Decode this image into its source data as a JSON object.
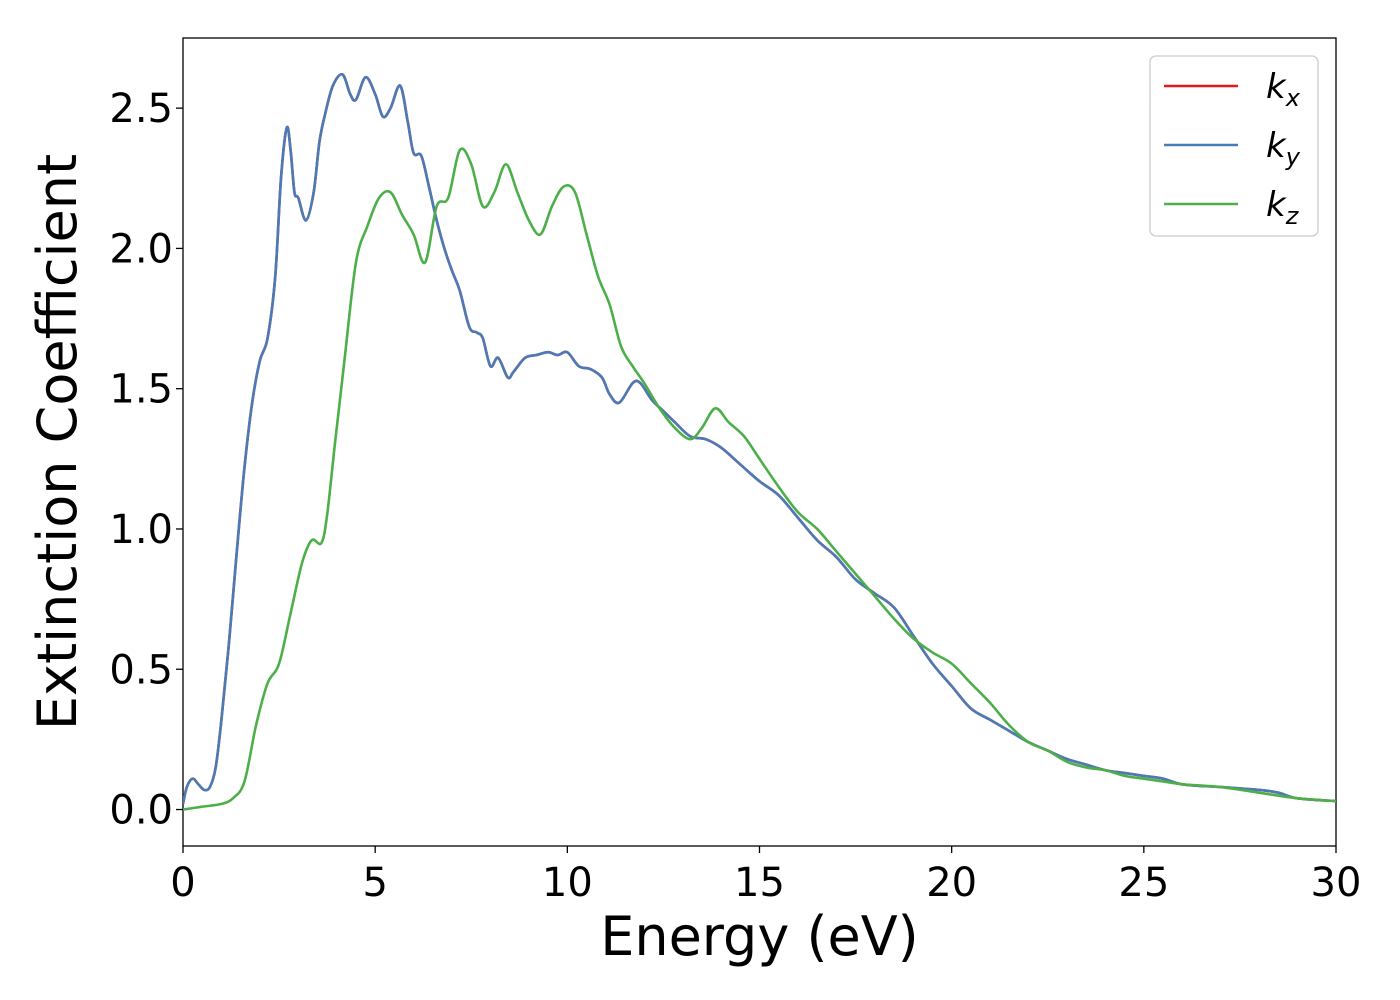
{
  "chart_data": {
    "type": "line",
    "xlabel": "Energy (eV)",
    "ylabel": "Extinction Coefficient",
    "xlim": [
      0,
      30
    ],
    "ylim": [
      -0.13,
      2.75
    ],
    "xticks": [
      0,
      5,
      10,
      15,
      20,
      25,
      30
    ],
    "xtick_labels": [
      "0",
      "5",
      "10",
      "15",
      "20",
      "25",
      "30"
    ],
    "yticks": [
      0.0,
      0.5,
      1.0,
      1.5,
      2.0,
      2.5
    ],
    "ytick_labels": [
      "0.0",
      "0.5",
      "1.0",
      "1.5",
      "2.0",
      "2.5"
    ],
    "grid": false,
    "legend_position": "top-right",
    "series": [
      {
        "name": "k_x",
        "label_main": "k",
        "label_sub": "x",
        "color": "#e41a1c",
        "x": [
          0,
          0.1,
          0.25,
          0.4,
          0.55,
          0.7,
          0.85,
          1.0,
          1.2,
          1.4,
          1.6,
          1.8,
          2.0,
          2.2,
          2.4,
          2.55,
          2.7,
          2.8,
          2.9,
          3.0,
          3.2,
          3.4,
          3.55,
          3.7,
          3.9,
          4.15,
          4.35,
          4.5,
          4.75,
          5.0,
          5.2,
          5.4,
          5.65,
          5.85,
          6.0,
          6.2,
          6.4,
          6.6,
          6.8,
          7.0,
          7.2,
          7.45,
          7.65,
          7.8,
          8.0,
          8.2,
          8.45,
          8.6,
          8.9,
          9.2,
          9.5,
          9.75,
          10.0,
          10.3,
          10.6,
          10.9,
          11.1,
          11.35,
          11.7,
          11.9,
          12.2,
          12.5,
          12.8,
          13.2,
          13.6,
          14.0,
          14.5,
          15.0,
          15.5,
          16.0,
          16.5,
          17.0,
          17.5,
          18.0,
          18.5,
          19.0,
          19.5,
          20.0,
          20.5,
          21.0,
          21.5,
          22.0,
          22.5,
          23.0,
          23.5,
          24.0,
          24.5,
          25.0,
          25.5,
          26.0,
          27.0,
          28.0,
          28.5,
          29.0,
          30.0
        ],
        "values": [
          0.02,
          0.08,
          0.11,
          0.09,
          0.07,
          0.08,
          0.15,
          0.32,
          0.6,
          0.92,
          1.22,
          1.45,
          1.6,
          1.68,
          1.9,
          2.25,
          2.43,
          2.35,
          2.2,
          2.18,
          2.1,
          2.2,
          2.38,
          2.48,
          2.58,
          2.62,
          2.55,
          2.53,
          2.61,
          2.55,
          2.47,
          2.5,
          2.58,
          2.45,
          2.34,
          2.33,
          2.22,
          2.1,
          2.0,
          1.92,
          1.85,
          1.72,
          1.7,
          1.68,
          1.58,
          1.61,
          1.54,
          1.56,
          1.61,
          1.62,
          1.63,
          1.62,
          1.63,
          1.58,
          1.57,
          1.54,
          1.48,
          1.45,
          1.52,
          1.52,
          1.46,
          1.42,
          1.38,
          1.33,
          1.32,
          1.29,
          1.23,
          1.17,
          1.12,
          1.04,
          0.96,
          0.9,
          0.82,
          0.77,
          0.72,
          0.62,
          0.52,
          0.44,
          0.36,
          0.32,
          0.28,
          0.24,
          0.21,
          0.18,
          0.16,
          0.14,
          0.13,
          0.12,
          0.11,
          0.09,
          0.08,
          0.07,
          0.06,
          0.04,
          0.03
        ]
      },
      {
        "name": "k_y",
        "label_main": "k",
        "label_sub": "y",
        "color": "#4a7bb7",
        "x": [
          0,
          0.1,
          0.25,
          0.4,
          0.55,
          0.7,
          0.85,
          1.0,
          1.2,
          1.4,
          1.6,
          1.8,
          2.0,
          2.2,
          2.4,
          2.55,
          2.7,
          2.8,
          2.9,
          3.0,
          3.2,
          3.4,
          3.55,
          3.7,
          3.9,
          4.15,
          4.35,
          4.5,
          4.75,
          5.0,
          5.2,
          5.4,
          5.65,
          5.85,
          6.0,
          6.2,
          6.4,
          6.6,
          6.8,
          7.0,
          7.2,
          7.45,
          7.65,
          7.8,
          8.0,
          8.2,
          8.45,
          8.6,
          8.9,
          9.2,
          9.5,
          9.75,
          10.0,
          10.3,
          10.6,
          10.9,
          11.1,
          11.35,
          11.7,
          11.9,
          12.2,
          12.5,
          12.8,
          13.2,
          13.6,
          14.0,
          14.5,
          15.0,
          15.5,
          16.0,
          16.5,
          17.0,
          17.5,
          18.0,
          18.5,
          19.0,
          19.5,
          20.0,
          20.5,
          21.0,
          21.5,
          22.0,
          22.5,
          23.0,
          23.5,
          24.0,
          24.5,
          25.0,
          25.5,
          26.0,
          27.0,
          28.0,
          28.5,
          29.0,
          30.0
        ],
        "values": [
          0.02,
          0.08,
          0.11,
          0.09,
          0.07,
          0.08,
          0.15,
          0.32,
          0.6,
          0.92,
          1.22,
          1.45,
          1.6,
          1.68,
          1.9,
          2.25,
          2.43,
          2.35,
          2.2,
          2.18,
          2.1,
          2.2,
          2.38,
          2.48,
          2.58,
          2.62,
          2.55,
          2.53,
          2.61,
          2.55,
          2.47,
          2.5,
          2.58,
          2.45,
          2.34,
          2.33,
          2.22,
          2.1,
          2.0,
          1.92,
          1.85,
          1.72,
          1.7,
          1.68,
          1.58,
          1.61,
          1.54,
          1.56,
          1.61,
          1.62,
          1.63,
          1.62,
          1.63,
          1.58,
          1.57,
          1.54,
          1.48,
          1.45,
          1.52,
          1.52,
          1.46,
          1.42,
          1.38,
          1.33,
          1.32,
          1.29,
          1.23,
          1.17,
          1.12,
          1.04,
          0.96,
          0.9,
          0.82,
          0.77,
          0.72,
          0.62,
          0.52,
          0.44,
          0.36,
          0.32,
          0.28,
          0.24,
          0.21,
          0.18,
          0.16,
          0.14,
          0.13,
          0.12,
          0.11,
          0.09,
          0.08,
          0.07,
          0.06,
          0.04,
          0.03
        ]
      },
      {
        "name": "k_z",
        "label_main": "k",
        "label_sub": "z",
        "color": "#4daf4a",
        "x": [
          0,
          0.5,
          1.0,
          1.3,
          1.6,
          1.9,
          2.2,
          2.5,
          2.8,
          3.1,
          3.35,
          3.6,
          3.75,
          3.95,
          4.2,
          4.5,
          4.8,
          5.1,
          5.4,
          5.7,
          6.0,
          6.3,
          6.6,
          6.9,
          7.2,
          7.5,
          7.8,
          8.1,
          8.4,
          8.7,
          9.0,
          9.3,
          9.6,
          9.9,
          10.2,
          10.5,
          10.8,
          11.1,
          11.4,
          11.7,
          12.0,
          12.4,
          12.8,
          13.2,
          13.5,
          13.85,
          14.2,
          14.6,
          15.0,
          15.5,
          16.0,
          16.5,
          17.0,
          17.5,
          18.0,
          18.5,
          19.0,
          19.5,
          20.0,
          20.5,
          21.0,
          21.5,
          22.0,
          22.5,
          23.0,
          23.5,
          24.0,
          24.5,
          25.0,
          25.5,
          26.0,
          27.0,
          28.0,
          29.0,
          30.0
        ],
        "values": [
          0.0,
          0.01,
          0.02,
          0.04,
          0.1,
          0.3,
          0.45,
          0.52,
          0.7,
          0.88,
          0.96,
          0.95,
          1.05,
          1.3,
          1.6,
          1.95,
          2.08,
          2.18,
          2.2,
          2.12,
          2.05,
          1.95,
          2.15,
          2.18,
          2.35,
          2.3,
          2.15,
          2.2,
          2.3,
          2.2,
          2.1,
          2.05,
          2.15,
          2.22,
          2.2,
          2.05,
          1.9,
          1.8,
          1.65,
          1.58,
          1.52,
          1.43,
          1.36,
          1.32,
          1.36,
          1.43,
          1.38,
          1.33,
          1.25,
          1.15,
          1.06,
          1.0,
          0.92,
          0.84,
          0.76,
          0.68,
          0.61,
          0.56,
          0.52,
          0.45,
          0.38,
          0.3,
          0.24,
          0.21,
          0.17,
          0.15,
          0.14,
          0.12,
          0.11,
          0.1,
          0.09,
          0.08,
          0.06,
          0.04,
          0.03
        ]
      }
    ]
  }
}
